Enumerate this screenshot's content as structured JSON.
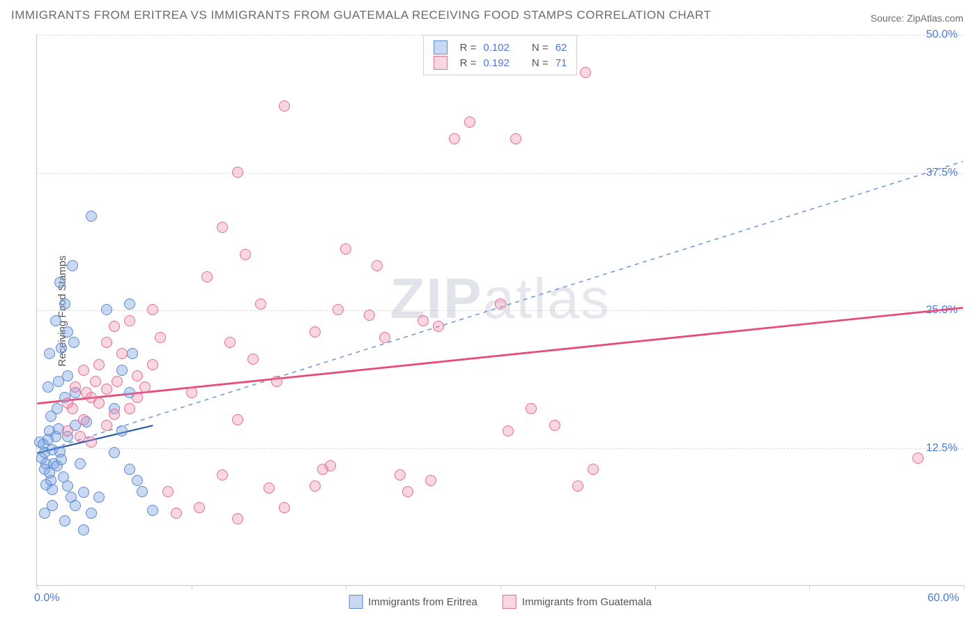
{
  "title": "IMMIGRANTS FROM ERITREA VS IMMIGRANTS FROM GUATEMALA RECEIVING FOOD STAMPS CORRELATION CHART",
  "source": "Source: ZipAtlas.com",
  "ylabel": "Receiving Food Stamps",
  "watermark_a": "ZIP",
  "watermark_b": "atlas",
  "chart": {
    "type": "scatter",
    "xlim": [
      0,
      60
    ],
    "ylim": [
      0,
      50
    ],
    "x_tick_positions": [
      0,
      10,
      20,
      30,
      40,
      50,
      60
    ],
    "y_ticks": [
      12.5,
      25.0,
      37.5,
      50.0
    ],
    "y_tick_labels": [
      "12.5%",
      "25.0%",
      "37.5%",
      "50.0%"
    ],
    "x_min_label": "0.0%",
    "x_max_label": "60.0%",
    "grid_color": "#dcdcdc",
    "axis_color": "#c8c8c8",
    "background_color": "#ffffff",
    "label_color": "#4a79d6",
    "text_color": "#555555",
    "title_color": "#6b6b6b",
    "title_fontsize": 17,
    "label_fontsize": 15,
    "tick_fontsize": 16,
    "marker_radius": 7
  },
  "series": [
    {
      "name": "Immigrants from Eritrea",
      "fill": "rgba(120,160,224,0.4)",
      "stroke": "#5a8ad0",
      "line_color": "#2a5aa8",
      "line_width": 2.2,
      "dashed_line_color": "#6b95d6",
      "R": "0.102",
      "N": "62",
      "trend_solid": {
        "x1": 0,
        "y1": 12.0,
        "x2": 7.5,
        "y2": 14.5
      },
      "trend_dashed": {
        "x1": 0,
        "y1": 12.0,
        "x2": 60,
        "y2": 38.5
      },
      "points": [
        [
          0.2,
          13
        ],
        [
          0.3,
          11.5
        ],
        [
          0.4,
          12.8
        ],
        [
          0.5,
          12
        ],
        [
          0.6,
          11
        ],
        [
          0.7,
          13.2
        ],
        [
          0.8,
          14
        ],
        [
          0.5,
          10.5
        ],
        [
          1.0,
          12.3
        ],
        [
          1.1,
          11
        ],
        [
          1.2,
          13.5
        ],
        [
          1.3,
          10.8
        ],
        [
          1.4,
          14.2
        ],
        [
          1.5,
          12.1
        ],
        [
          1.6,
          11.4
        ],
        [
          0.9,
          9.5
        ],
        [
          1.0,
          8.7
        ],
        [
          0.6,
          9.1
        ],
        [
          0.8,
          10.2
        ],
        [
          1.7,
          9.8
        ],
        [
          2.0,
          9.0
        ],
        [
          2.2,
          8.0
        ],
        [
          2.5,
          7.2
        ],
        [
          3.0,
          8.4
        ],
        [
          2.8,
          11.0
        ],
        [
          1.8,
          5.8
        ],
        [
          3.5,
          6.5
        ],
        [
          4.0,
          8.0
        ],
        [
          2.0,
          13.5
        ],
        [
          2.5,
          14.5
        ],
        [
          3.2,
          14.8
        ],
        [
          0.9,
          15.3
        ],
        [
          1.3,
          16.0
        ],
        [
          1.8,
          17.0
        ],
        [
          2.5,
          17.5
        ],
        [
          0.7,
          18.0
        ],
        [
          1.4,
          18.5
        ],
        [
          2.0,
          19.0
        ],
        [
          0.8,
          21.0
        ],
        [
          1.6,
          21.5
        ],
        [
          2.4,
          22.0
        ],
        [
          2.0,
          23.0
        ],
        [
          1.2,
          24.0
        ],
        [
          1.8,
          25.5
        ],
        [
          4.5,
          25.0
        ],
        [
          1.5,
          27.5
        ],
        [
          2.3,
          29.0
        ],
        [
          3.5,
          33.5
        ],
        [
          6.0,
          10.5
        ],
        [
          6.5,
          9.5
        ],
        [
          7.5,
          6.8
        ],
        [
          6.8,
          8.5
        ],
        [
          5.0,
          12.0
        ],
        [
          5.5,
          14.0
        ],
        [
          5.0,
          16.0
        ],
        [
          6.0,
          17.5
        ],
        [
          5.5,
          19.5
        ],
        [
          6.2,
          21.0
        ],
        [
          6.0,
          25.5
        ],
        [
          3.0,
          5.0
        ],
        [
          0.5,
          6.5
        ],
        [
          1.0,
          7.2
        ]
      ]
    },
    {
      "name": "Immigrants from Guatemala",
      "fill": "rgba(236,140,168,0.35)",
      "stroke": "#e46b94",
      "line_color": "#e84a7a",
      "line_width": 2.8,
      "R": "0.192",
      "N": "71",
      "trend_solid": {
        "x1": 0,
        "y1": 16.5,
        "x2": 60,
        "y2": 25.2
      },
      "points": [
        [
          2.0,
          16.5
        ],
        [
          2.5,
          18.0
        ],
        [
          3.0,
          19.5
        ],
        [
          3.5,
          17.0
        ],
        [
          4.0,
          20.0
        ],
        [
          4.5,
          22.0
        ],
        [
          5.0,
          23.5
        ],
        [
          5.5,
          21.0
        ],
        [
          6.0,
          24.0
        ],
        [
          6.5,
          19.0
        ],
        [
          7.0,
          18.0
        ],
        [
          7.5,
          25.0
        ],
        [
          8.0,
          22.5
        ],
        [
          3.0,
          15.0
        ],
        [
          4.5,
          14.5
        ],
        [
          5.0,
          15.5
        ],
        [
          6.0,
          16.0
        ],
        [
          3.5,
          13.0
        ],
        [
          2.8,
          13.5
        ],
        [
          10.0,
          17.5
        ],
        [
          11.0,
          28.0
        ],
        [
          12.0,
          32.5
        ],
        [
          12.5,
          22.0
        ],
        [
          12.0,
          10.0
        ],
        [
          13.0,
          15.0
        ],
        [
          13.5,
          30.0
        ],
        [
          13.0,
          37.5
        ],
        [
          14.0,
          20.5
        ],
        [
          14.5,
          25.5
        ],
        [
          15.0,
          8.8
        ],
        [
          15.5,
          18.5
        ],
        [
          16.0,
          43.5
        ],
        [
          18.0,
          9.0
        ],
        [
          18.0,
          23.0
        ],
        [
          18.5,
          10.5
        ],
        [
          19.0,
          10.8
        ],
        [
          19.5,
          25.0
        ],
        [
          20.0,
          30.5
        ],
        [
          21.5,
          24.5
        ],
        [
          22.0,
          29.0
        ],
        [
          22.5,
          22.5
        ],
        [
          23.5,
          10.0
        ],
        [
          24.0,
          8.5
        ],
        [
          25.0,
          24.0
        ],
        [
          25.5,
          9.5
        ],
        [
          26.0,
          23.5
        ],
        [
          27.0,
          40.5
        ],
        [
          28.0,
          42.0
        ],
        [
          30.0,
          25.5
        ],
        [
          30.5,
          14.0
        ],
        [
          31.0,
          40.5
        ],
        [
          32.0,
          16.0
        ],
        [
          33.5,
          14.5
        ],
        [
          35.0,
          9.0
        ],
        [
          35.5,
          46.5
        ],
        [
          36.0,
          10.5
        ],
        [
          57.0,
          11.5
        ],
        [
          8.5,
          8.5
        ],
        [
          9.0,
          6.5
        ],
        [
          10.5,
          7.0
        ],
        [
          16.0,
          7.0
        ],
        [
          13.0,
          6.0
        ],
        [
          2.0,
          14.0
        ],
        [
          2.3,
          16.0
        ],
        [
          3.2,
          17.5
        ],
        [
          4.0,
          16.5
        ],
        [
          3.8,
          18.5
        ],
        [
          4.5,
          17.8
        ],
        [
          5.2,
          18.5
        ],
        [
          6.5,
          17.0
        ],
        [
          7.5,
          20.0
        ]
      ]
    }
  ],
  "legend": {
    "R_label": "R =",
    "N_label": "N ="
  }
}
